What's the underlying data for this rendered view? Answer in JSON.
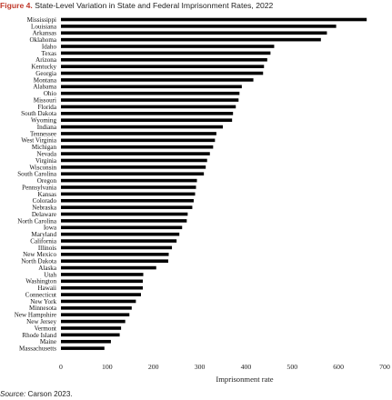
{
  "figure_label": "Figure 4.",
  "chart_data": {
    "type": "bar",
    "orientation": "horizontal",
    "title": "State-Level Variation in State and Federal Imprisonment Rates, 2022",
    "xlabel": "Imprisonment rate",
    "ylabel": "",
    "xlim": [
      0,
      700
    ],
    "xticks": [
      0,
      100,
      200,
      300,
      400,
      500,
      600,
      700
    ],
    "bar_color": "#000000",
    "grid": false,
    "categories": [
      "Mississippi",
      "Louisiana",
      "Arkansas",
      "Oklahoma",
      "Idaho",
      "Texas",
      "Arizona",
      "Kentucky",
      "Georgia",
      "Montana",
      "Alabama",
      "Ohio",
      "Missouri",
      "Florida",
      "South Dakota",
      "Wyoming",
      "Indiana",
      "Tennessee",
      "West Virginia",
      "Michigan",
      "Nevada",
      "Virginia",
      "Wisconsin",
      "South Carolina",
      "Oregon",
      "Pennsylvania",
      "Kansas",
      "Colorado",
      "Nebraska",
      "Delaware",
      "North Carolina",
      "Iowa",
      "Maryland",
      "California",
      "Illinois",
      "New Mexico",
      "North Dakota",
      "Alaska",
      "Utah",
      "Washington",
      "Hawaii",
      "Connecticut",
      "New York",
      "Minnesota",
      "New Hampshire",
      "New Jersey",
      "Vermont",
      "Rhode Island",
      "Maine",
      "Massachusetts"
    ],
    "values": [
      661,
      595,
      575,
      562,
      461,
      453,
      446,
      439,
      437,
      416,
      391,
      386,
      384,
      378,
      372,
      370,
      350,
      336,
      333,
      329,
      322,
      316,
      313,
      309,
      294,
      292,
      290,
      287,
      284,
      274,
      272,
      262,
      256,
      250,
      240,
      233,
      232,
      206,
      178,
      177,
      177,
      173,
      162,
      153,
      148,
      139,
      130,
      127,
      108,
      94
    ]
  },
  "source": {
    "label": "Source:",
    "text": " Carson 2023."
  }
}
